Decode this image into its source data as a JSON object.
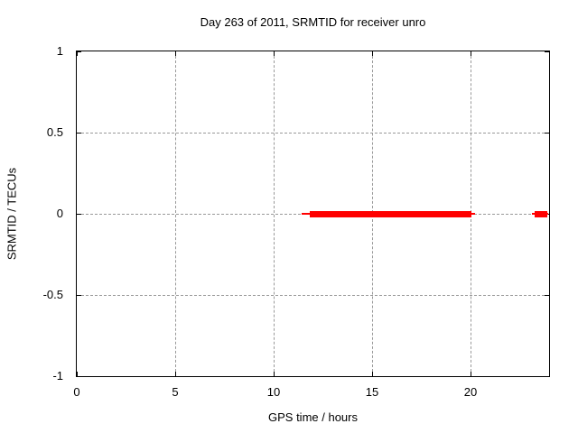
{
  "chart_data": {
    "type": "line",
    "title": "Day 263 of 2011, SRMTID for receiver unro",
    "xlabel": "GPS time / hours",
    "ylabel": "SRMTID / TECUs",
    "xlim": [
      0,
      24
    ],
    "ylim": [
      -1,
      1
    ],
    "xticks": [
      {
        "v": 0,
        "label": "0"
      },
      {
        "v": 5,
        "label": "5"
      },
      {
        "v": 10,
        "label": "10"
      },
      {
        "v": 15,
        "label": "15"
      },
      {
        "v": 20,
        "label": "20"
      }
    ],
    "yticks": [
      {
        "v": -1,
        "label": "-1"
      },
      {
        "v": -0.5,
        "label": "-0.5"
      },
      {
        "v": 0,
        "label": "0"
      },
      {
        "v": 0.5,
        "label": "0.5"
      },
      {
        "v": 1,
        "label": "1"
      }
    ],
    "grid": true,
    "legend": "none",
    "colors": {
      "series": "#ff0000",
      "grid": "#999999",
      "axis": "#000000",
      "background": "#ffffff"
    },
    "series": [
      {
        "name": "SRMTID",
        "color": "#ff0000",
        "y": 0,
        "segments": [
          {
            "x1": 11.43,
            "x2": 20.25,
            "core_x1": 11.84,
            "core_x2": 20.07
          },
          {
            "x1": 23.13,
            "x2": 23.95,
            "core_x1": 23.27,
            "core_x2": 23.91
          }
        ]
      }
    ]
  }
}
